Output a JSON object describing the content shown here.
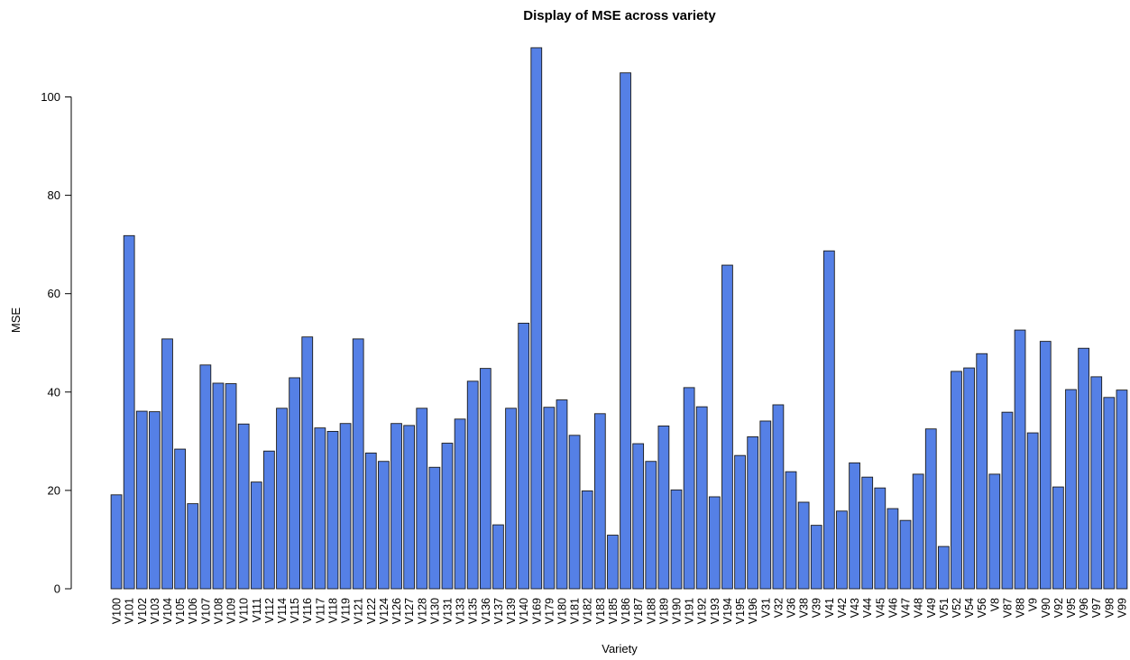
{
  "chart_data": {
    "type": "bar",
    "title": "Display of MSE across variety",
    "xlabel": "Variety",
    "ylabel": "MSE",
    "ylim": [
      0,
      110
    ],
    "yticks": [
      0,
      20,
      40,
      60,
      80,
      100
    ],
    "grid": false,
    "legend": "none",
    "bar_color": "#5580e6",
    "categories": [
      "V100",
      "V101",
      "V102",
      "V103",
      "V104",
      "V105",
      "V106",
      "V107",
      "V108",
      "V109",
      "V110",
      "V111",
      "V112",
      "V114",
      "V115",
      "V116",
      "V117",
      "V118",
      "V119",
      "V121",
      "V122",
      "V124",
      "V126",
      "V127",
      "V128",
      "V130",
      "V131",
      "V133",
      "V135",
      "V136",
      "V137",
      "V139",
      "V140",
      "V169",
      "V179",
      "V180",
      "V181",
      "V182",
      "V183",
      "V185",
      "V186",
      "V187",
      "V188",
      "V189",
      "V190",
      "V191",
      "V192",
      "V193",
      "V194",
      "V195",
      "V196",
      "V31",
      "V32",
      "V36",
      "V38",
      "V39",
      "V41",
      "V42",
      "V43",
      "V44",
      "V45",
      "V46",
      "V47",
      "V48",
      "V49",
      "V51",
      "V52",
      "V54",
      "V56",
      "V8",
      "V87",
      "V88",
      "V9",
      "V90",
      "V92",
      "V95",
      "V96",
      "V97",
      "V98",
      "V99"
    ],
    "values": [
      19.1,
      71.8,
      36.1,
      36.0,
      50.8,
      28.4,
      17.3,
      45.5,
      41.8,
      41.7,
      33.5,
      21.7,
      28.0,
      36.7,
      42.9,
      51.2,
      32.7,
      32.0,
      33.6,
      50.8,
      27.6,
      25.9,
      33.6,
      33.2,
      36.7,
      24.7,
      29.6,
      34.5,
      42.2,
      44.8,
      13.0,
      36.7,
      54.0,
      110.0,
      36.9,
      38.4,
      31.2,
      19.9,
      35.6,
      10.9,
      104.9,
      29.5,
      25.9,
      33.1,
      20.1,
      40.9,
      37.0,
      18.7,
      65.8,
      27.1,
      30.9,
      34.1,
      37.4,
      23.8,
      17.6,
      12.9,
      68.7,
      15.8,
      25.6,
      22.7,
      20.5,
      16.3,
      13.9,
      23.3,
      32.5,
      8.6,
      44.2,
      44.9,
      47.8,
      23.3,
      35.9,
      52.6,
      31.7,
      50.3,
      20.7,
      40.5,
      48.9,
      43.1,
      38.9,
      40.4
    ]
  }
}
